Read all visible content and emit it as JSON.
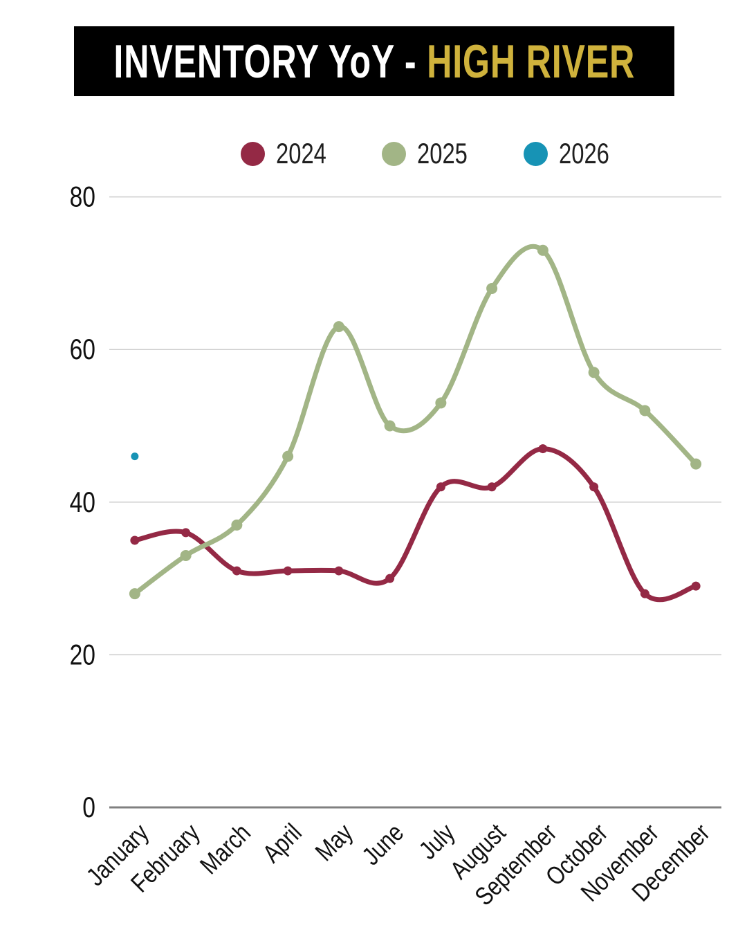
{
  "title": {
    "main": "INVENTORY YoY - ",
    "accent": "HIGH RIVER",
    "accent_color": "#cfb23c",
    "banner_bg": "#000000"
  },
  "chart_data": {
    "type": "line",
    "title": "INVENTORY YoY - HIGH RIVER",
    "categories": [
      "January",
      "February",
      "March",
      "April",
      "May",
      "June",
      "July",
      "August",
      "September",
      "October",
      "November",
      "December"
    ],
    "series": [
      {
        "name": "2024",
        "color": "#942945",
        "values": [
          35,
          36,
          31,
          31,
          31,
          30,
          42,
          42,
          47,
          42,
          28,
          29
        ]
      },
      {
        "name": "2025",
        "color": "#a2b586",
        "values": [
          28,
          33,
          37,
          46,
          63,
          50,
          53,
          68,
          73,
          57,
          52,
          45
        ]
      },
      {
        "name": "2026",
        "color": "#1793b5",
        "values": [
          46,
          null,
          null,
          null,
          null,
          null,
          null,
          null,
          null,
          null,
          null,
          null
        ]
      }
    ],
    "xlabel": "",
    "ylabel": "",
    "ylim": [
      0,
      80
    ],
    "yticks": [
      0,
      20,
      40,
      60,
      80
    ],
    "grid": "horizontal",
    "legend_position": "top",
    "legend_labels": [
      "2024",
      "2025",
      "2026"
    ]
  }
}
